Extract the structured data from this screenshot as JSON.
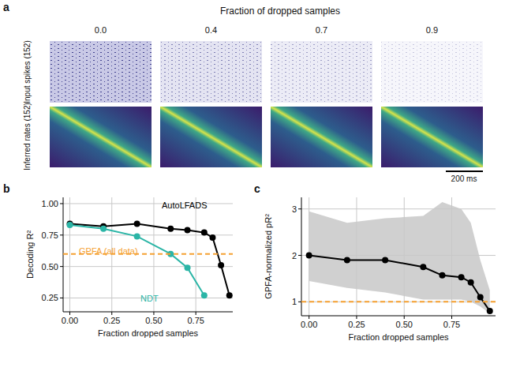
{
  "panel_labels": [
    "a",
    "b",
    "c"
  ],
  "panel_a": {
    "title": "Fraction of dropped samples",
    "columns": [
      "0.0",
      "0.4",
      "0.7",
      "0.9"
    ],
    "row_labels": [
      "Input spikes (152)",
      "Inferred rates (152)"
    ],
    "scale_bar": "200 ms"
  },
  "chart_data": [
    {
      "type": "line",
      "x_label": "Fraction dropped samples",
      "y_label": "Decoding R²",
      "xlim": [
        -0.04,
        0.97
      ],
      "ylim": [
        0.14,
        1.05
      ],
      "xticks": [
        {
          "value": 0,
          "label": "0.00"
        },
        {
          "value": 0.25,
          "label": "0.25"
        },
        {
          "value": 0.5,
          "label": "0.50"
        },
        {
          "value": 0.75,
          "label": "0.75"
        }
      ],
      "yticks": [
        {
          "value": 0.25,
          "label": "0.25"
        },
        {
          "value": 0.5,
          "label": "0.50"
        },
        {
          "value": 0.75,
          "label": "0.75"
        },
        {
          "value": 1,
          "label": "1.00"
        }
      ],
      "grid": true,
      "series": [
        {
          "name": "AutoLFADS",
          "color": "#000000",
          "marker": "circle",
          "line_style": "solid",
          "x": [
            0,
            0.2,
            0.4,
            0.6,
            0.7,
            0.8,
            0.85,
            0.9,
            0.95
          ],
          "values": [
            0.84,
            0.82,
            0.84,
            0.8,
            0.79,
            0.77,
            0.73,
            0.51,
            0.27
          ]
        },
        {
          "name": "NDT",
          "color": "#2bb5a6",
          "marker": "circle",
          "line_style": "solid",
          "x": [
            0,
            0.2,
            0.4,
            0.6,
            0.7,
            0.8
          ],
          "values": [
            0.83,
            0.8,
            0.74,
            0.6,
            0.49,
            0.27
          ]
        },
        {
          "name": "GPFA (all data)",
          "color": "#f5a030",
          "line_style": "dashed",
          "x": [
            -0.04,
            0.97
          ],
          "values": [
            0.6,
            0.6
          ]
        }
      ]
    },
    {
      "type": "line",
      "x_label": "Fraction dropped samples",
      "y_label": "GPFA-normalized pR²",
      "xlim": [
        -0.04,
        0.98
      ],
      "ylim": [
        0.7,
        3.25
      ],
      "xticks": [
        {
          "value": 0,
          "label": "0.00"
        },
        {
          "value": 0.25,
          "label": "0.25"
        },
        {
          "value": 0.5,
          "label": "0.50"
        },
        {
          "value": 0.75,
          "label": "0.75"
        }
      ],
      "yticks": [
        1,
        2,
        3
      ],
      "grid": true,
      "series": [
        {
          "color": "#000000",
          "marker": "circle",
          "line_style": "solid",
          "x": [
            0,
            0.2,
            0.4,
            0.6,
            0.7,
            0.8,
            0.85,
            0.9,
            0.95
          ],
          "values": [
            2.0,
            1.9,
            1.9,
            1.75,
            1.57,
            1.53,
            1.42,
            1.1,
            0.8
          ],
          "band_lower": [
            1.45,
            1.3,
            1.2,
            1.05,
            1.05,
            1.05,
            1.0,
            0.9,
            0.75
          ],
          "band_upper": [
            2.95,
            2.7,
            2.8,
            2.85,
            3.15,
            3.0,
            2.7,
            1.9,
            1.25
          ]
        },
        {
          "color": "#f5a030",
          "line_style": "dashed",
          "x": [
            -0.04,
            0.98
          ],
          "values": [
            1,
            1
          ]
        }
      ]
    }
  ]
}
